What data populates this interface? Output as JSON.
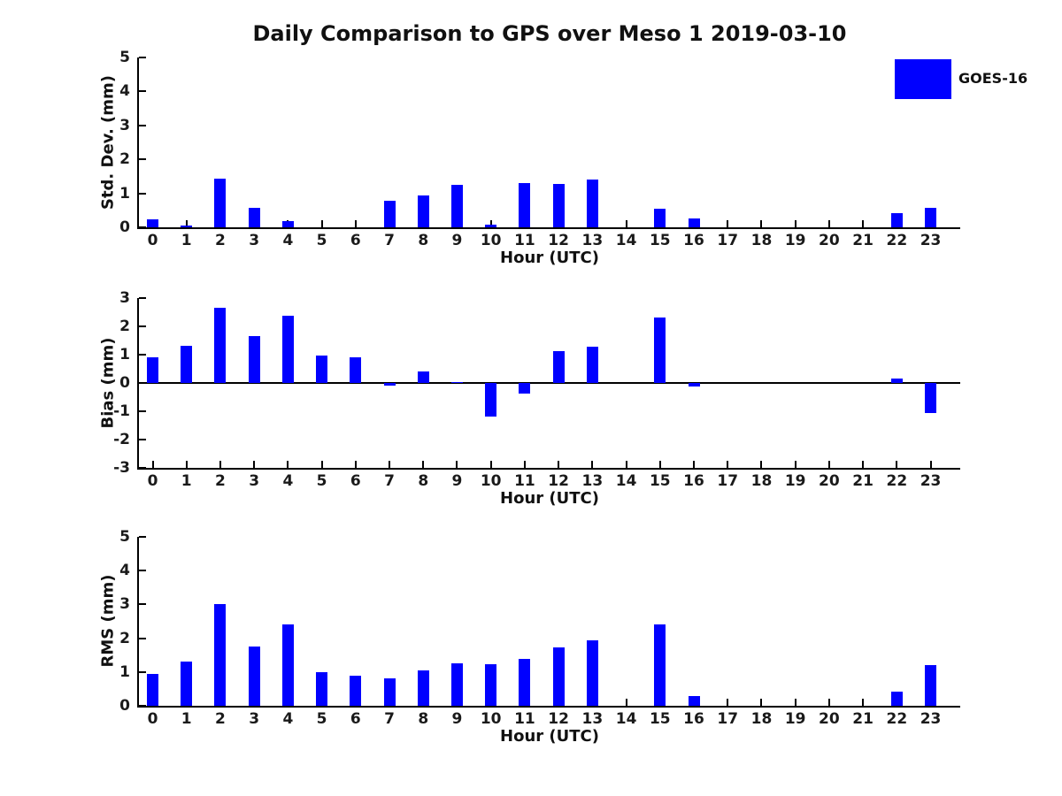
{
  "title": "Daily Comparison to GPS over Meso 1 2019-03-10",
  "legend": {
    "label": "GOES-16",
    "swatch_color": "#0000ff",
    "position": "upper right"
  },
  "colors": {
    "bar": "#0000ff",
    "axis": "#000000",
    "background": "#ffffff"
  },
  "chart_data": [
    {
      "type": "bar",
      "series_name": "GOES-16",
      "ylabel": "Std. Dev. (mm)",
      "xlabel": "Hour (UTC)",
      "categories": [
        "0",
        "1",
        "2",
        "3",
        "4",
        "5",
        "6",
        "7",
        "8",
        "9",
        "10",
        "11",
        "12",
        "13",
        "14",
        "15",
        "16",
        "17",
        "18",
        "19",
        "20",
        "21",
        "22",
        "23"
      ],
      "values": [
        0.23,
        0.04,
        1.43,
        0.58,
        0.18,
        0,
        0,
        0.78,
        0.93,
        1.25,
        0.07,
        1.3,
        1.27,
        1.4,
        0,
        0.55,
        0.26,
        0,
        0,
        0,
        0,
        0,
        0.42,
        0.57
      ],
      "ylim": [
        0,
        5
      ],
      "yticks": [
        0,
        1,
        2,
        3,
        4,
        5
      ],
      "grid": false
    },
    {
      "type": "bar",
      "series_name": "GOES-16",
      "ylabel": "Bias (mm)",
      "xlabel": "Hour (UTC)",
      "categories": [
        "0",
        "1",
        "2",
        "3",
        "4",
        "5",
        "6",
        "7",
        "8",
        "9",
        "10",
        "11",
        "12",
        "13",
        "14",
        "15",
        "16",
        "17",
        "18",
        "19",
        "20",
        "21",
        "22",
        "23"
      ],
      "values": [
        0.92,
        1.32,
        2.65,
        1.67,
        2.38,
        0.97,
        0.92,
        -0.1,
        0.4,
        0.04,
        -1.2,
        -0.38,
        1.14,
        1.28,
        0,
        2.32,
        -0.12,
        0,
        0,
        0,
        0,
        0,
        0.17,
        -1.05
      ],
      "ylim": [
        -3,
        3
      ],
      "yticks": [
        -3,
        -2,
        -1,
        0,
        1,
        2,
        3
      ],
      "zero_line": true,
      "grid": false
    },
    {
      "type": "bar",
      "series_name": "GOES-16",
      "ylabel": "RMS (mm)",
      "xlabel": "Hour (UTC)",
      "categories": [
        "0",
        "1",
        "2",
        "3",
        "4",
        "5",
        "6",
        "7",
        "8",
        "9",
        "10",
        "11",
        "12",
        "13",
        "14",
        "15",
        "16",
        "17",
        "18",
        "19",
        "20",
        "21",
        "22",
        "23"
      ],
      "values": [
        0.95,
        1.31,
        3.0,
        1.75,
        2.4,
        1.0,
        0.9,
        0.8,
        1.04,
        1.26,
        1.23,
        1.39,
        1.73,
        1.94,
        0,
        2.4,
        0.29,
        0,
        0,
        0,
        0,
        0,
        0.43,
        1.2
      ],
      "ylim": [
        0,
        5
      ],
      "yticks": [
        0,
        1,
        2,
        3,
        4,
        5
      ],
      "grid": false
    }
  ]
}
